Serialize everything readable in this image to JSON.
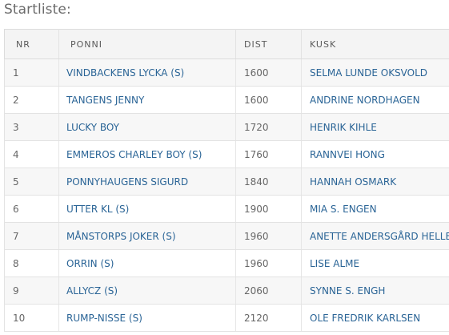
{
  "page": {
    "title": "Startliste:"
  },
  "table": {
    "headers": {
      "nr": "NR",
      "ponni": "PONNI",
      "dist": "DIST",
      "kusk": "KUSK"
    },
    "rows": [
      {
        "nr": "1",
        "ponni": "VINDBACKENS LYCKA (S)",
        "dist": "1600",
        "kusk": "SELMA LUNDE OKSVOLD"
      },
      {
        "nr": "2",
        "ponni": "TANGENS JENNY",
        "dist": "1600",
        "kusk": "ANDRINE NORDHAGEN"
      },
      {
        "nr": "3",
        "ponni": "LUCKY BOY",
        "dist": "1720",
        "kusk": "HENRIK KIHLE"
      },
      {
        "nr": "4",
        "ponni": "EMMEROS CHARLEY BOY (S)",
        "dist": "1760",
        "kusk": "RANNVEI HONG"
      },
      {
        "nr": "5",
        "ponni": "PONNYHAUGENS SIGURD",
        "dist": "1840",
        "kusk": "HANNAH OSMARK"
      },
      {
        "nr": "6",
        "ponni": "UTTER KL (S)",
        "dist": "1900",
        "kusk": "MIA S. ENGEN"
      },
      {
        "nr": "7",
        "ponni": "MÅNSTORPS JOKER (S)",
        "dist": "1960",
        "kusk": "ANETTE ANDERSGÅRD HELLE"
      },
      {
        "nr": "8",
        "ponni": "ORRIN (S)",
        "dist": "1960",
        "kusk": "LISE ALME"
      },
      {
        "nr": "9",
        "ponni": "ALLYCZ (S)",
        "dist": "2060",
        "kusk": "SYNNE S. ENGH"
      },
      {
        "nr": "10",
        "ponni": "RUMP-NISSE (S)",
        "dist": "2120",
        "kusk": "OLE FREDRIK KARLSEN"
      }
    ]
  },
  "colors": {
    "link": "#2a6496",
    "header_bg": "#f4f4f4",
    "stripe_bg": "#f7f7f7"
  }
}
